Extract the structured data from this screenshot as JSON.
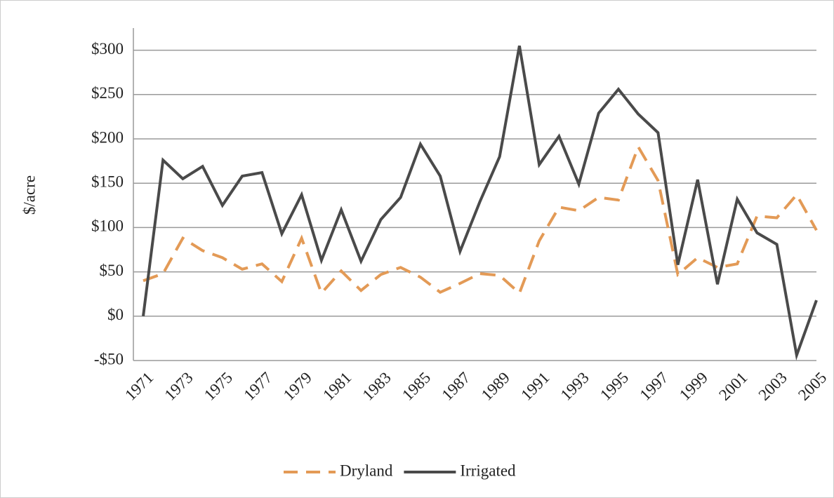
{
  "chart_data": {
    "type": "line",
    "ylabel": "$/acre",
    "x": [
      1971,
      1972,
      1973,
      1974,
      1975,
      1976,
      1977,
      1978,
      1979,
      1980,
      1981,
      1982,
      1983,
      1984,
      1985,
      1986,
      1987,
      1988,
      1989,
      1990,
      1991,
      1992,
      1993,
      1994,
      1995,
      1996,
      1997,
      1998,
      1999,
      2000,
      2001,
      2002,
      2003,
      2004,
      2005
    ],
    "xlim": [
      1971,
      2005
    ],
    "xticks": [
      1971,
      1973,
      1975,
      1977,
      1979,
      1981,
      1983,
      1985,
      1987,
      1989,
      1991,
      1993,
      1995,
      1997,
      1999,
      2001,
      2003,
      2005
    ],
    "ylim": [
      -50,
      325
    ],
    "yticks": [
      {
        "value": -50,
        "label": "-$50"
      },
      {
        "value": 0,
        "label": "$0"
      },
      {
        "value": 50,
        "label": "$50"
      },
      {
        "value": 100,
        "label": "$100"
      },
      {
        "value": 150,
        "label": "$150"
      },
      {
        "value": 200,
        "label": "$200"
      },
      {
        "value": 250,
        "label": "$250"
      },
      {
        "value": 300,
        "label": "$300"
      }
    ],
    "grid": true,
    "legend": "bottom",
    "series": [
      {
        "name": "Dryland",
        "color": "#e39a56",
        "dash": true,
        "values": [
          40,
          48,
          88,
          74,
          66,
          53,
          59,
          39,
          88,
          26,
          51,
          29,
          47,
          55,
          44,
          27,
          37,
          48,
          46,
          26,
          85,
          123,
          119,
          134,
          131,
          191,
          153,
          47,
          66,
          55,
          59,
          113,
          111,
          137,
          97
        ]
      },
      {
        "name": "Irrigated",
        "color": "#4a4a4a",
        "dash": false,
        "values": [
          0,
          176,
          155,
          169,
          125,
          158,
          162,
          93,
          137,
          63,
          120,
          62,
          109,
          134,
          194,
          158,
          73,
          129,
          180,
          305,
          171,
          203,
          149,
          229,
          256,
          228,
          207,
          58,
          154,
          36,
          132,
          94,
          81,
          -44,
          18
        ]
      }
    ]
  }
}
